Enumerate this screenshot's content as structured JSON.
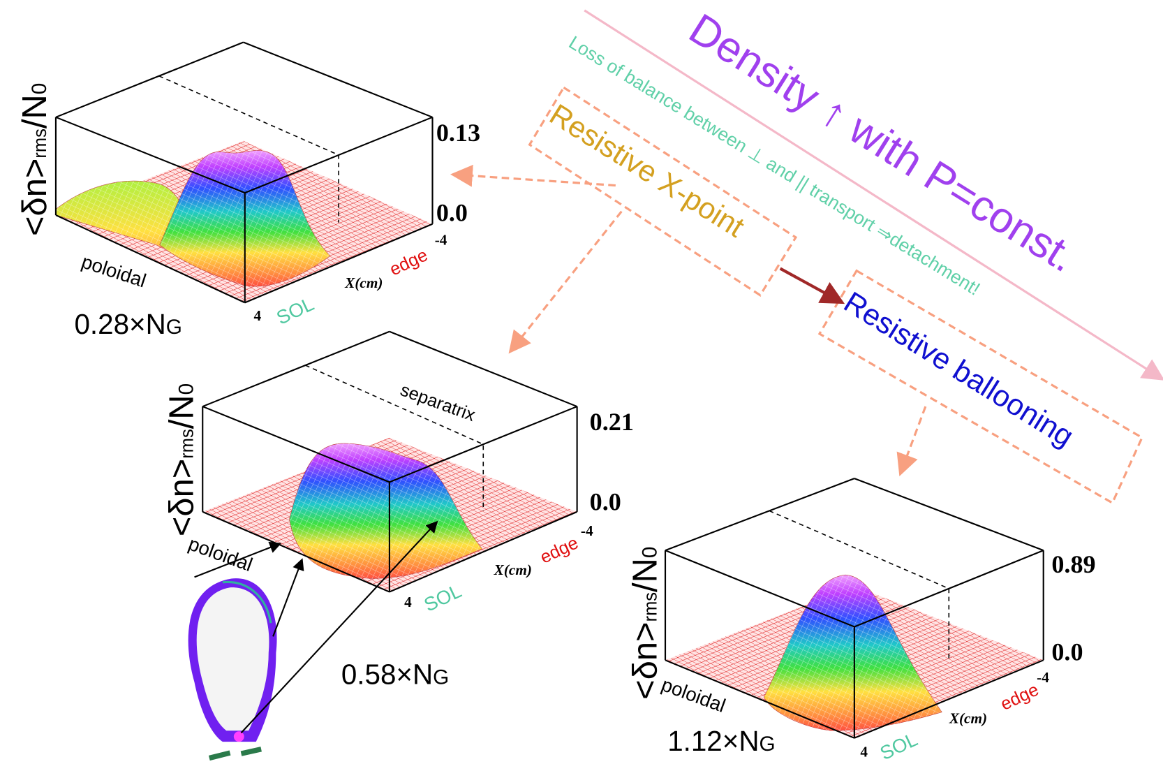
{
  "title": "Density ↑ with P=const.",
  "subtitle": "Loss of balance between ⊥ and || transport ⇒detachment!",
  "regimes": [
    "Resistive X-point",
    "Resistive ballooning"
  ],
  "panels": [
    {
      "ylabel": {
        "main": "<δn>",
        "sub": "rms",
        "denom": "/N",
        "denom_sub": "0"
      },
      "z_top": "0.13",
      "z_bottom": "0.0",
      "x_far": "-4",
      "x_near": "4",
      "x_label": "X(cm)",
      "edge": "edge",
      "sol": "SOL",
      "poloidal": "poloidal",
      "caption": {
        "main": "0.28×N",
        "sub": "G"
      }
    },
    {
      "ylabel": {
        "main": "<δn>",
        "sub": "rms",
        "denom": "/N",
        "denom_sub": "0"
      },
      "z_top": "0.21",
      "z_bottom": "0.0",
      "x_far": "-4",
      "x_near": "4",
      "x_label": "X(cm)",
      "edge": "edge",
      "sol": "SOL",
      "poloidal": "poloidal",
      "separatrix": "separatrix",
      "caption": {
        "main": "0.58×N",
        "sub": "G"
      }
    },
    {
      "ylabel": {
        "main": "<δn>",
        "sub": "rms",
        "denom": "/N",
        "denom_sub": "0"
      },
      "z_top": "0.89",
      "z_bottom": "0.0",
      "x_far": "-4",
      "x_near": "4",
      "x_label": "X(cm)",
      "edge": "edge",
      "sol": "SOL",
      "poloidal": "poloidal",
      "caption": {
        "main": "1.12×N",
        "sub": "G"
      }
    }
  ]
}
